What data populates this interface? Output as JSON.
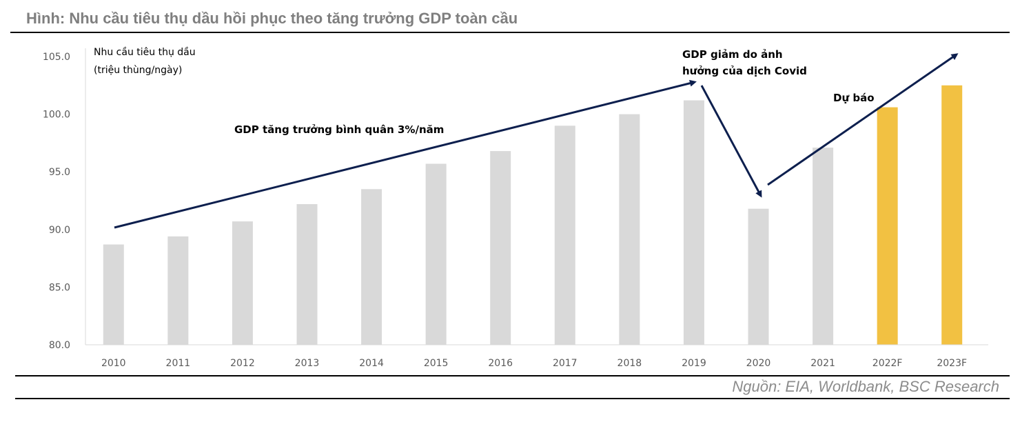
{
  "title": "Hình: Nhu cầu tiêu thụ dầu hồi phục theo tăng trưởng GDP toàn cầu",
  "source": "Nguồn: EIA, Worldbank, BSC Research",
  "chart_data": {
    "type": "bar",
    "title": "Hình: Nhu cầu tiêu thụ dầu hồi phục theo tăng trưởng GDP toàn cầu",
    "ylabel_lines": [
      "Nhu cầu tiêu thụ dầu",
      "(triệu thùng/ngày)"
    ],
    "xlabel": "",
    "ylim": [
      80,
      105
    ],
    "yticks": [
      "80.0",
      "85.0",
      "90.0",
      "95.0",
      "100.0",
      "105.0"
    ],
    "categories": [
      "2010",
      "2011",
      "2012",
      "2013",
      "2014",
      "2015",
      "2016",
      "2017",
      "2018",
      "2019",
      "2020",
      "2021",
      "2022F",
      "2023F"
    ],
    "values": [
      88.7,
      89.4,
      90.7,
      92.2,
      93.5,
      95.7,
      96.8,
      99.0,
      100.0,
      101.2,
      91.8,
      97.1,
      100.6,
      102.5
    ],
    "forecast": [
      false,
      false,
      false,
      false,
      false,
      false,
      false,
      false,
      false,
      false,
      false,
      false,
      true,
      true
    ],
    "colors": {
      "actual": "#d9d9d9",
      "forecast": "#f2c142",
      "arrow": "#0d1f4e"
    },
    "annotations": {
      "gdp_growth": "GDP tăng trưởng bình quân 3%/năm",
      "covid_lines": [
        "GDP giảm do ảnh",
        "hưởng của dịch Covid"
      ],
      "forecast": "Dự báo"
    },
    "grid": false,
    "legend": "none"
  }
}
